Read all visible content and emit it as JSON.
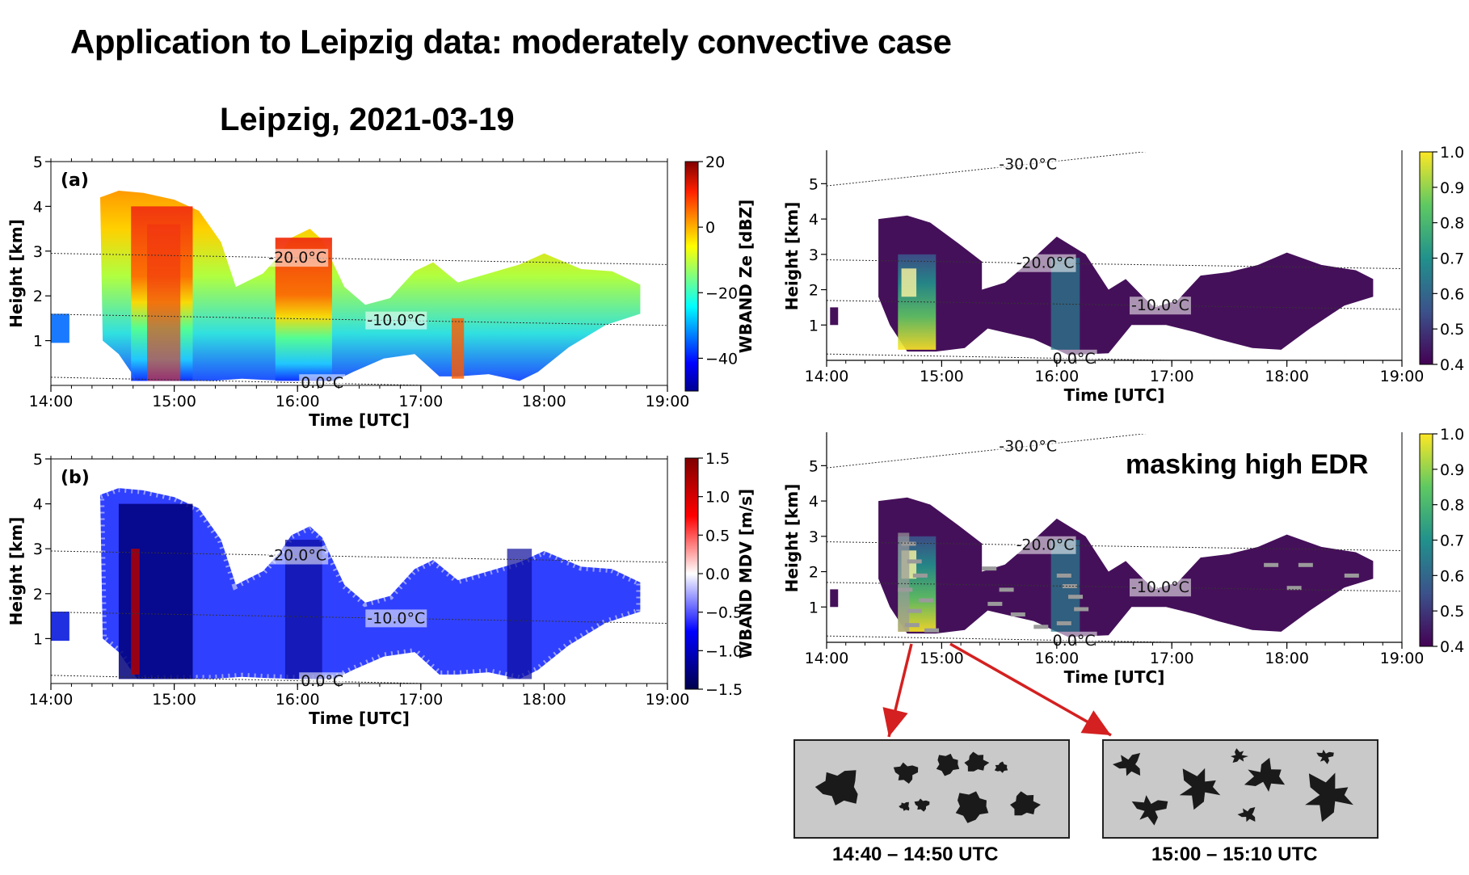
{
  "slide": {
    "title": "Application to Leipzig data: moderately convective case",
    "figure_title": "Leipzig, 2021-03-19",
    "mask_label": "masking high EDR",
    "caption_left": "14:40 – 14:50 UTC",
    "caption_right": "15:00 – 15:10 UTC"
  },
  "colors": {
    "isotherm": "#333333",
    "arrow": "#d42020",
    "edr_background": "#45105a",
    "mask_gray": "#9a9a9a",
    "photo_bg": "#c9c9c9",
    "particle": "#1a1a1a"
  },
  "chart_data": [
    {
      "id": "a",
      "type": "heatmap",
      "panel_label": "(a)",
      "xlabel": "Time [UTC]",
      "ylabel": "Height [km]",
      "xticks": [
        "14:00",
        "15:00",
        "16:00",
        "17:00",
        "18:00",
        "19:00"
      ],
      "xlim": [
        14,
        19
      ],
      "ylim": [
        0,
        5
      ],
      "yticks": [
        1,
        2,
        3,
        4,
        5
      ],
      "colorbar": {
        "label": "WBAND Ze [dBZ]",
        "colormap": "jet",
        "range": [
          -50,
          20
        ],
        "ticks": [
          "20",
          "0",
          "−20",
          "−40"
        ],
        "tick_values": [
          20,
          0,
          -20,
          -40
        ]
      },
      "isotherms": [
        {
          "label": "-20.0°C",
          "label_x": 16.0,
          "label_y": 2.85
        },
        {
          "label": "-10.0°C",
          "label_x": 16.8,
          "label_y": 1.45
        },
        {
          "label": "0.0°C",
          "label_x": 16.2,
          "label_y": 0.05
        }
      ]
    },
    {
      "id": "b",
      "type": "heatmap",
      "panel_label": "(b)",
      "xlabel": "Time [UTC]",
      "ylabel": "Height [km]",
      "xticks": [
        "14:00",
        "15:00",
        "16:00",
        "17:00",
        "18:00",
        "19:00"
      ],
      "xlim": [
        14,
        19
      ],
      "ylim": [
        0,
        5
      ],
      "yticks": [
        1,
        2,
        3,
        4,
        5
      ],
      "colorbar": {
        "label": "WBAND MDV [m/s]",
        "colormap": "seismic",
        "range": [
          -1.5,
          1.5
        ],
        "ticks": [
          "1.5",
          "1.0",
          "0.5",
          "0.0",
          "−0.5",
          "−1.0",
          "−1.5"
        ],
        "tick_values": [
          1.5,
          1.0,
          0.5,
          0.0,
          -0.5,
          -1.0,
          -1.5
        ]
      },
      "isotherms": [
        {
          "label": "-20.0°C",
          "label_x": 16.0,
          "label_y": 2.85
        },
        {
          "label": "-10.0°C",
          "label_x": 16.8,
          "label_y": 1.45
        },
        {
          "label": "0.0°C",
          "label_x": 16.2,
          "label_y": 0.05
        }
      ]
    },
    {
      "id": "c",
      "type": "heatmap",
      "panel_label": "",
      "xlabel": "Time [UTC]",
      "ylabel": "Height [km]",
      "xticks": [
        "14:00",
        "15:00",
        "16:00",
        "17:00",
        "18:00",
        "19:00"
      ],
      "xlim": [
        14,
        19
      ],
      "ylim": [
        0,
        5.9
      ],
      "yticks": [
        1,
        2,
        3,
        4,
        5
      ],
      "colorbar": {
        "label": "",
        "colormap": "viridis",
        "range": [
          0.4,
          1.0
        ],
        "ticks": [
          "1.0",
          "0.9",
          "0.8",
          "0.7",
          "0.6",
          "0.5",
          "0.4"
        ],
        "tick_values": [
          1.0,
          0.9,
          0.8,
          0.7,
          0.6,
          0.5,
          0.4
        ]
      },
      "isotherms": [
        {
          "label": "-30.0°C",
          "label_x": 15.75,
          "label_y": 5.55
        },
        {
          "label": "-20.0°C",
          "label_x": 15.9,
          "label_y": 2.75
        },
        {
          "label": "-10.0°C",
          "label_x": 16.9,
          "label_y": 1.55
        },
        {
          "label": "0.0°C",
          "label_x": 16.15,
          "label_y": 0.05
        }
      ]
    },
    {
      "id": "d",
      "type": "heatmap",
      "panel_label": "",
      "xlabel": "Time [UTC]",
      "ylabel": "Height [km]",
      "xticks": [
        "14:00",
        "15:00",
        "16:00",
        "17:00",
        "18:00",
        "19:00"
      ],
      "xlim": [
        14,
        19
      ],
      "ylim": [
        0,
        5.9
      ],
      "yticks": [
        1,
        2,
        3,
        4,
        5
      ],
      "colorbar": {
        "label": "",
        "colormap": "viridis",
        "range": [
          0.4,
          1.0
        ],
        "ticks": [
          "1.0",
          "0.9",
          "0.8",
          "0.7",
          "0.6",
          "0.5",
          "0.4"
        ],
        "tick_values": [
          1.0,
          0.9,
          0.8,
          0.7,
          0.6,
          0.5,
          0.4
        ]
      },
      "isotherms": [
        {
          "label": "-30.0°C",
          "label_x": 15.75,
          "label_y": 5.55
        },
        {
          "label": "-20.0°C",
          "label_x": 15.9,
          "label_y": 2.75
        },
        {
          "label": "-10.0°C",
          "label_x": 16.9,
          "label_y": 1.55
        },
        {
          "label": "0.0°C",
          "label_x": 16.15,
          "label_y": 0.05
        }
      ]
    }
  ]
}
